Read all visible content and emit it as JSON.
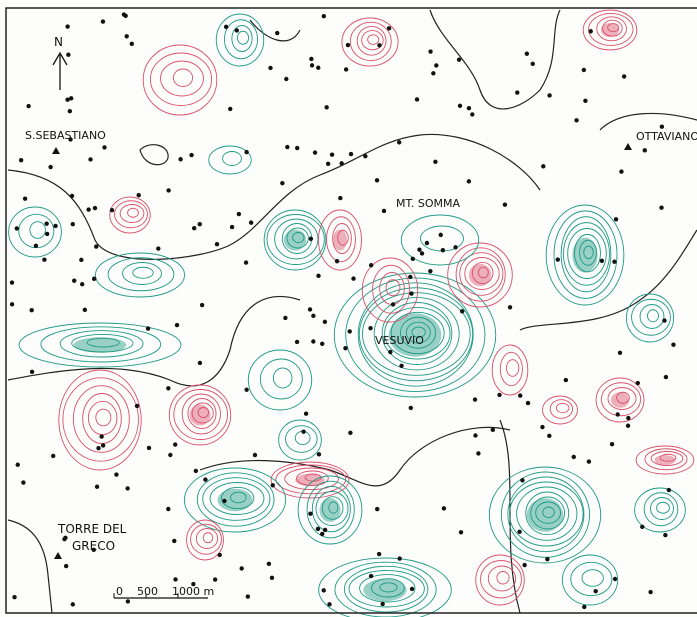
{
  "map": {
    "north": "N",
    "places": {
      "san_sebastiano": "S.SEBASTIANO",
      "ottaviano": "OTTAVIANO",
      "monte_somma": "MT. SOMMA",
      "vesuvio": "VESUVIO",
      "torre_del_greco": [
        "TORRE DEL",
        "GRECO"
      ]
    },
    "scale": [
      "0",
      "500",
      "1000 m"
    ]
  }
}
